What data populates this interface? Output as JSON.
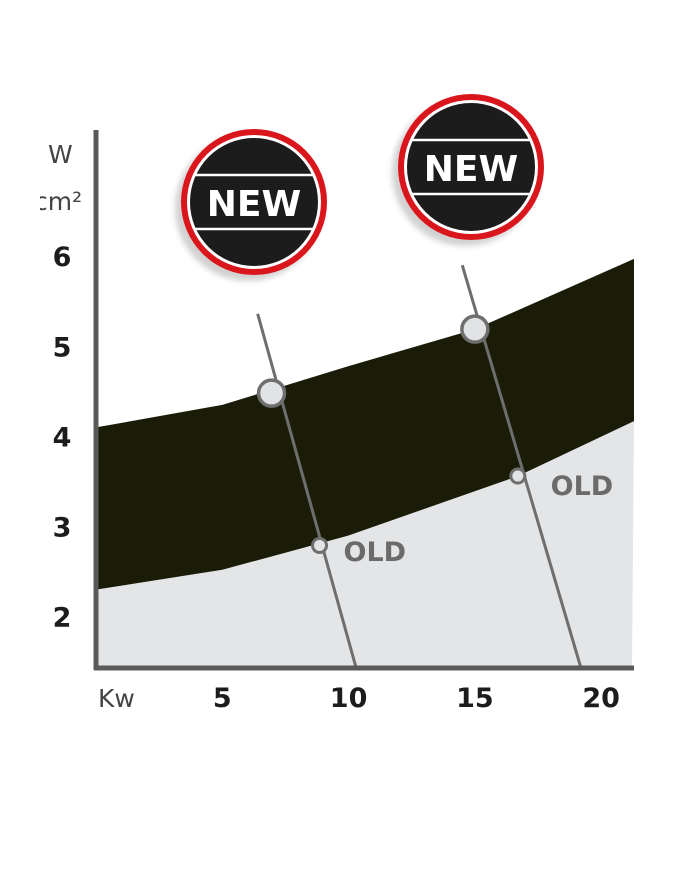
{
  "chart_data": {
    "type": "area",
    "ylabel_line1": "W",
    "ylabel_line2": "cm²",
    "xlabel": "Kw",
    "xlim": [
      0,
      21.3
    ],
    "ylim": [
      1.43,
      7.4
    ],
    "x_ticks": [
      "5",
      "10",
      "15",
      "20"
    ],
    "x_tick_values": [
      5,
      10,
      15,
      20
    ],
    "y_ticks": [
      "6",
      "5",
      "4",
      "3",
      "2"
    ],
    "y_tick_values": [
      6,
      5,
      4,
      3,
      2
    ],
    "grid": false,
    "band": {
      "upper": [
        [
          0,
          4.1
        ],
        [
          5,
          4.35
        ],
        [
          10,
          4.78
        ],
        [
          15,
          5.19
        ],
        [
          21.3,
          5.97
        ]
      ],
      "lower": [
        [
          0,
          2.3
        ],
        [
          5,
          2.52
        ],
        [
          10,
          2.9
        ],
        [
          16.7,
          3.56
        ],
        [
          21.3,
          4.17
        ]
      ],
      "color": "#1b1c08"
    },
    "lower_area_color": "#e4e5e7",
    "lines": [
      {
        "from": [
          6.4,
          5.36
        ],
        "to": [
          10.3,
          1.43
        ]
      },
      {
        "from": [
          14.5,
          5.9
        ],
        "to": [
          19.2,
          1.43
        ]
      }
    ],
    "new_points": [
      [
        6.95,
        4.48
      ],
      [
        15.0,
        5.19
      ]
    ],
    "old_points": [
      [
        8.85,
        2.79
      ],
      [
        16.7,
        3.56
      ]
    ],
    "old_labels": [
      {
        "text": "OLD",
        "at": [
          9.8,
          2.62
        ]
      },
      {
        "text": "OLD",
        "at": [
          18.0,
          3.35
        ]
      }
    ],
    "badges": [
      {
        "text": "NEW",
        "ring_color": "#d9141c",
        "fill_color": "#1a1a1a"
      },
      {
        "text": "NEW",
        "ring_color": "#d9141c",
        "fill_color": "#1a1a1a"
      }
    ]
  }
}
